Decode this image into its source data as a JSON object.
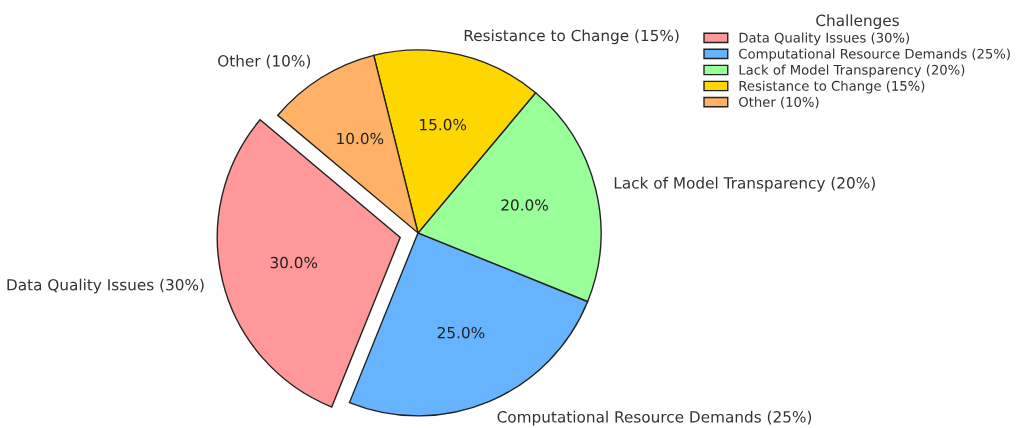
{
  "chart_data": {
    "type": "pie",
    "legend_title": "Challenges",
    "legend": "top right",
    "categories": [
      "Data Quality Issues (30%)",
      "Computational Resource Demands (25%)",
      "Lack of Model Transparency (20%)",
      "Resistance to Change (15%)",
      "Other (10%)"
    ],
    "values": [
      30,
      25,
      20,
      15,
      10
    ],
    "value_labels": [
      "30.0%",
      "25.0%",
      "20.0%",
      "15.0%",
      "10.0%"
    ],
    "colors": [
      "#ff9999",
      "#66b3ff",
      "#99ff99",
      "#ffd700",
      "#ffb266"
    ]
  }
}
